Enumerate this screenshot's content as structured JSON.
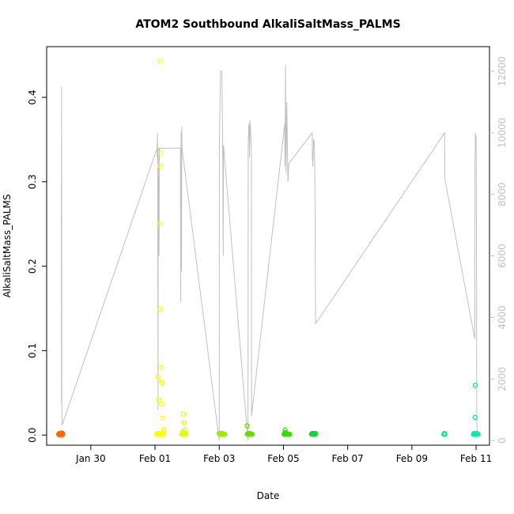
{
  "chart_data": {
    "type": "scatter",
    "title": "ATOM2 Southbound AlkaliSaltMass_PALMS",
    "xlabel": "Date",
    "ylabel": "AlkaliSaltMass_PALMS",
    "x_ticks": [
      "Jan 30",
      "Feb 01",
      "Feb 03",
      "Feb 05",
      "Feb 07",
      "Feb 09",
      "Feb 11"
    ],
    "y_ticks": [
      "0.0",
      "0.1",
      "0.2",
      "0.3",
      "0.4"
    ],
    "y2_ticks": [
      "0",
      "2000",
      "4000",
      "6000",
      "8000",
      "10000",
      "12000"
    ],
    "xlim": [
      "2017-01-28T15:00",
      "2017-02-11T10:00"
    ],
    "ylim": [
      -0.012,
      0.46
    ],
    "y2lim": [
      -150,
      12800
    ],
    "grid": false,
    "secondary_series": {
      "color": "#c0c0c0",
      "x": [
        "2017-01-29T02:00",
        "2017-01-29T02:05",
        "2017-01-29T02:10",
        "2017-01-29T02:20",
        "2017-01-29T02:30",
        "2017-02-01T01:30",
        "2017-02-01T01:35",
        "2017-02-01T01:45",
        "2017-02-01T02:00",
        "2017-02-01T02:10",
        "2017-02-01T02:15",
        "2017-02-01T02:25",
        "2017-02-01T03:00",
        "2017-02-01T03:15",
        "2017-02-01T19:00",
        "2017-02-01T19:10",
        "2017-02-01T19:30",
        "2017-02-01T19:45",
        "2017-02-01T20:00",
        "2017-02-01T20:10",
        "2017-02-03T00:00",
        "2017-02-03T00:10",
        "2017-02-03T01:00",
        "2017-02-03T02:00",
        "2017-02-03T02:30",
        "2017-02-03T03:00",
        "2017-02-03T03:10",
        "2017-02-03T21:30",
        "2017-02-03T21:40",
        "2017-02-03T22:00",
        "2017-02-03T22:20",
        "2017-02-03T22:40",
        "2017-02-03T23:00",
        "2017-02-04T00:00",
        "2017-02-04T00:10",
        "2017-02-05T01:00",
        "2017-02-05T01:10",
        "2017-02-05T01:30",
        "2017-02-05T02:00",
        "2017-02-05T02:30",
        "2017-02-05T03:00",
        "2017-02-05T03:20",
        "2017-02-05T04:00",
        "2017-02-05T21:30",
        "2017-02-05T21:40",
        "2017-02-05T22:00",
        "2017-02-05T22:30",
        "2017-02-05T23:00",
        "2017-02-05T23:30",
        "2017-02-06T00:00",
        "2017-02-10T00:30",
        "2017-02-10T00:40",
        "2017-02-10T23:00",
        "2017-02-10T23:10",
        "2017-02-10T23:30",
        "2017-02-11T00:00",
        "2017-02-11T00:10",
        "2017-02-11T00:30",
        "2017-02-11T01:00"
      ],
      "values": [
        8400,
        1200,
        11500,
        1000,
        500,
        9500,
        9200,
        10000,
        9500,
        3000,
        1000,
        9500,
        6000,
        9500,
        9500,
        4500,
        10000,
        5500,
        10200,
        9500,
        0,
        9800,
        12000,
        12000,
        10000,
        6000,
        9600,
        0,
        9500,
        10200,
        10300,
        9200,
        10400,
        9500,
        800,
        10300,
        8900,
        12200,
        8700,
        11000,
        9500,
        8400,
        9000,
        10000,
        9200,
        8900,
        9800,
        9700,
        8600,
        3800,
        10000,
        8500,
        3300,
        9000,
        10000,
        9800,
        8400,
        600,
        200
      ]
    },
    "series": [
      {
        "color": "#ff6600",
        "x": [
          "2017-01-29T00:00",
          "2017-01-29T00:30",
          "2017-01-29T01:00",
          "2017-01-29T01:30",
          "2017-01-29T02:00",
          "2017-01-29T02:30",
          "2017-01-29T03:00",
          "2017-01-29T00:15",
          "2017-01-29T00:45",
          "2017-01-29T01:15",
          "2017-01-29T01:45",
          "2017-01-29T02:15",
          "2017-01-29T02:45"
        ],
        "values": [
          0.001,
          0.002,
          0.001,
          0.002,
          0.001,
          0.001,
          0.002,
          0.0005,
          0.0015,
          0.0005,
          0.001,
          0.0025,
          0.0005
        ]
      },
      {
        "color": "#ffff00",
        "x": [
          "2017-02-01T01:00",
          "2017-02-01T01:30",
          "2017-02-01T02:00",
          "2017-02-01T02:30",
          "2017-02-01T03:00",
          "2017-02-01T03:30",
          "2017-02-01T04:00",
          "2017-02-01T04:30",
          "2017-02-01T05:00",
          "2017-02-01T05:30",
          "2017-02-01T06:00",
          "2017-02-01T03:45",
          "2017-02-01T04:10",
          "2017-02-01T03:40",
          "2017-02-01T03:20",
          "2017-02-01T03:50",
          "2017-02-01T04:20",
          "2017-02-01T02:10",
          "2017-02-01T04:40",
          "2017-02-01T05:10",
          "2017-02-01T02:40",
          "2017-02-01T04:50",
          "2017-02-01T05:40",
          "2017-02-01T06:30",
          "2017-02-01T06:10",
          "2017-02-01T05:20"
        ],
        "values": [
          0.001,
          0.002,
          0.001,
          0.002,
          0.001,
          0.002,
          0.001,
          0.002,
          0.001,
          0.002,
          0.001,
          0.443,
          0.334,
          0.319,
          0.25,
          0.149,
          0.08,
          0.069,
          0.063,
          0.062,
          0.042,
          0.037,
          0.02,
          0.007,
          0.003,
          0.001
        ]
      },
      {
        "color": "#ddff00",
        "x": [
          "2017-02-01T20:00",
          "2017-02-01T20:30",
          "2017-02-01T21:00",
          "2017-02-01T21:30",
          "2017-02-01T22:00",
          "2017-02-01T22:30",
          "2017-02-01T23:00",
          "2017-02-01T21:15",
          "2017-02-01T21:45",
          "2017-02-01T22:15",
          "2017-02-01T20:45",
          "2017-02-01T21:20"
        ],
        "values": [
          0.001,
          0.002,
          0.001,
          0.003,
          0.001,
          0.002,
          0.001,
          0.025,
          0.015,
          0.006,
          0.004,
          0.002
        ]
      },
      {
        "color": "#99ee00",
        "x": [
          "2017-02-03T00:00",
          "2017-02-03T00:30",
          "2017-02-03T01:00",
          "2017-02-03T01:30",
          "2017-02-03T02:00",
          "2017-02-03T02:30",
          "2017-02-03T03:00",
          "2017-02-03T03:30",
          "2017-02-03T04:00"
        ],
        "values": [
          0.002,
          0.001,
          0.002,
          0.001,
          0.001,
          0.002,
          0.001,
          0.001,
          0.001
        ]
      },
      {
        "color": "#66dd00",
        "x": [
          "2017-02-03T21:00",
          "2017-02-03T21:30",
          "2017-02-03T22:00",
          "2017-02-03T22:30",
          "2017-02-03T23:00",
          "2017-02-03T23:30",
          "2017-02-04T00:00",
          "2017-02-04T00:30",
          "2017-02-03T20:50"
        ],
        "values": [
          0.001,
          0.002,
          0.001,
          0.001,
          0.002,
          0.001,
          0.001,
          0.001,
          0.011
        ]
      },
      {
        "color": "#33dd00",
        "x": [
          "2017-02-05T00:30",
          "2017-02-05T01:00",
          "2017-02-05T01:30",
          "2017-02-05T02:00",
          "2017-02-05T02:30",
          "2017-02-05T03:00",
          "2017-02-05T03:30",
          "2017-02-05T04:00",
          "2017-02-05T04:30",
          "2017-02-05T01:15",
          "2017-02-05T01:20"
        ],
        "values": [
          0.001,
          0.002,
          0.001,
          0.001,
          0.002,
          0.001,
          0.001,
          0.001,
          0.001,
          0.006,
          0.003
        ]
      },
      {
        "color": "#00dd33",
        "x": [
          "2017-02-05T21:00",
          "2017-02-05T21:30",
          "2017-02-05T22:00",
          "2017-02-05T22:30",
          "2017-02-05T23:00",
          "2017-02-05T23:30",
          "2017-02-06T00:00"
        ],
        "values": [
          0.001,
          0.002,
          0.001,
          0.002,
          0.001,
          0.001,
          0.002
        ]
      },
      {
        "color": "#00ee88",
        "x": [
          "2017-02-10T00:00",
          "2017-02-10T00:20",
          "2017-02-10T00:40"
        ],
        "values": [
          0.001,
          0.002,
          0.001
        ]
      },
      {
        "color": "#00eeaa",
        "x": [
          "2017-02-10T22:00",
          "2017-02-10T22:30",
          "2017-02-10T23:00",
          "2017-02-10T23:30",
          "2017-02-11T00:00",
          "2017-02-11T00:30",
          "2017-02-11T01:00",
          "2017-02-11T01:30",
          "2017-02-10T23:20",
          "2017-02-10T23:10"
        ],
        "values": [
          0.001,
          0.002,
          0.001,
          0.002,
          0.001,
          0.002,
          0.001,
          0.001,
          0.059,
          0.021
        ]
      }
    ]
  }
}
